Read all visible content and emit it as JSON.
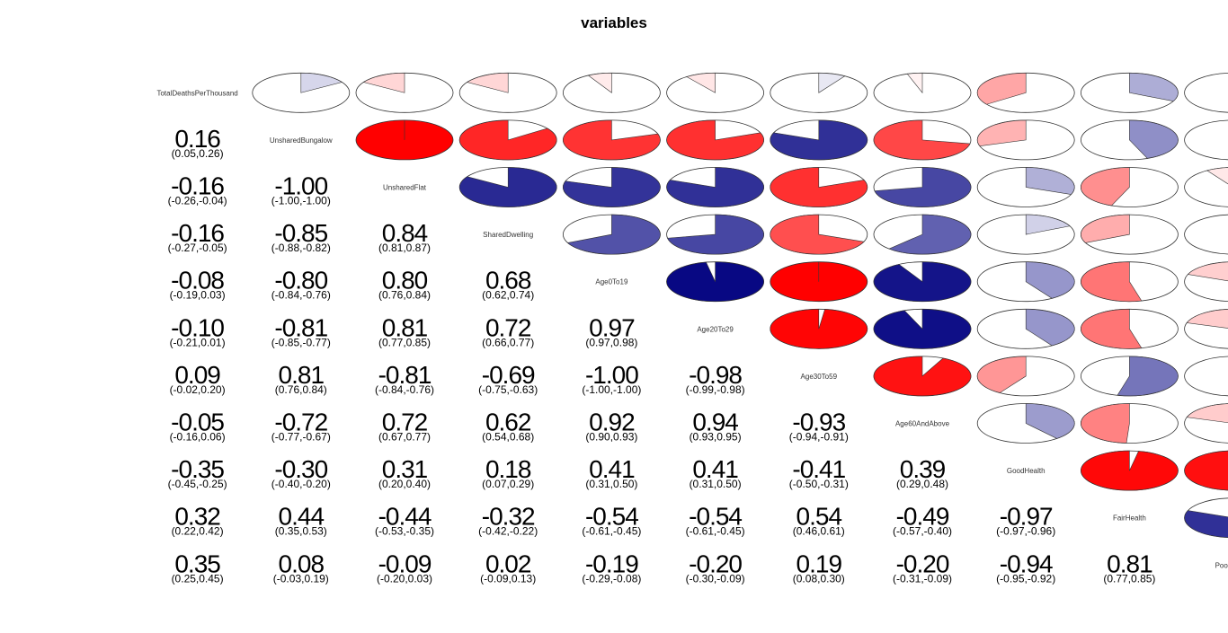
{
  "chart_data": {
    "type": "heatmap",
    "title": "variables",
    "variables": [
      "TotalDeathsPerThousand",
      "UnsharedBungalow",
      "UnsharedFlat",
      "SharedDwelling",
      "Age0To19",
      "Age20To29",
      "Age30To59",
      "Age60AndAbove",
      "GoodHealth",
      "FairHealth",
      "PoorHealth"
    ],
    "upper_panel": "pie",
    "lower_panel": "confidence interval",
    "diagonal": "variable names",
    "colors": {
      "positive": "#00007F",
      "negative": "#FF0000",
      "zero": "#FFFFFF"
    },
    "lower_cells": [
      {
        "i": 1,
        "j": 0,
        "r": "0.16",
        "ci": "(0.05,0.26)"
      },
      {
        "i": 2,
        "j": 0,
        "r": "-0.16",
        "ci": "(-0.26,-0.04)"
      },
      {
        "i": 2,
        "j": 1,
        "r": "-1.00",
        "ci": "(-1.00,-1.00)"
      },
      {
        "i": 3,
        "j": 0,
        "r": "-0.16",
        "ci": "(-0.27,-0.05)"
      },
      {
        "i": 3,
        "j": 1,
        "r": "-0.85",
        "ci": "(-0.88,-0.82)"
      },
      {
        "i": 3,
        "j": 2,
        "r": "0.84",
        "ci": "(0.81,0.87)"
      },
      {
        "i": 4,
        "j": 0,
        "r": "-0.08",
        "ci": "(-0.19,0.03)"
      },
      {
        "i": 4,
        "j": 1,
        "r": "-0.80",
        "ci": "(-0.84,-0.76)"
      },
      {
        "i": 4,
        "j": 2,
        "r": "0.80",
        "ci": "(0.76,0.84)"
      },
      {
        "i": 4,
        "j": 3,
        "r": "0.68",
        "ci": "(0.62,0.74)"
      },
      {
        "i": 5,
        "j": 0,
        "r": "-0.10",
        "ci": "(-0.21,0.01)"
      },
      {
        "i": 5,
        "j": 1,
        "r": "-0.81",
        "ci": "(-0.85,-0.77)"
      },
      {
        "i": 5,
        "j": 2,
        "r": "0.81",
        "ci": "(0.77,0.85)"
      },
      {
        "i": 5,
        "j": 3,
        "r": "0.72",
        "ci": "(0.66,0.77)"
      },
      {
        "i": 5,
        "j": 4,
        "r": "0.97",
        "ci": "(0.97,0.98)"
      },
      {
        "i": 6,
        "j": 0,
        "r": "0.09",
        "ci": "(-0.02,0.20)"
      },
      {
        "i": 6,
        "j": 1,
        "r": "0.81",
        "ci": "(0.76,0.84)"
      },
      {
        "i": 6,
        "j": 2,
        "r": "-0.81",
        "ci": "(-0.84,-0.76)"
      },
      {
        "i": 6,
        "j": 3,
        "r": "-0.69",
        "ci": "(-0.75,-0.63)"
      },
      {
        "i": 6,
        "j": 4,
        "r": "-1.00",
        "ci": "(-1.00,-1.00)"
      },
      {
        "i": 6,
        "j": 5,
        "r": "-0.98",
        "ci": "(-0.99,-0.98)"
      },
      {
        "i": 7,
        "j": 0,
        "r": "-0.05",
        "ci": "(-0.16,0.06)"
      },
      {
        "i": 7,
        "j": 1,
        "r": "-0.72",
        "ci": "(-0.77,-0.67)"
      },
      {
        "i": 7,
        "j": 2,
        "r": "0.72",
        "ci": "(0.67,0.77)"
      },
      {
        "i": 7,
        "j": 3,
        "r": "0.62",
        "ci": "(0.54,0.68)"
      },
      {
        "i": 7,
        "j": 4,
        "r": "0.92",
        "ci": "(0.90,0.93)"
      },
      {
        "i": 7,
        "j": 5,
        "r": "0.94",
        "ci": "(0.93,0.95)"
      },
      {
        "i": 7,
        "j": 6,
        "r": "-0.93",
        "ci": "(-0.94,-0.91)"
      },
      {
        "i": 8,
        "j": 0,
        "r": "-0.35",
        "ci": "(-0.45,-0.25)"
      },
      {
        "i": 8,
        "j": 1,
        "r": "-0.30",
        "ci": "(-0.40,-0.20)"
      },
      {
        "i": 8,
        "j": 2,
        "r": "0.31",
        "ci": "(0.20,0.40)"
      },
      {
        "i": 8,
        "j": 3,
        "r": "0.18",
        "ci": "(0.07,0.29)"
      },
      {
        "i": 8,
        "j": 4,
        "r": "0.41",
        "ci": "(0.31,0.50)"
      },
      {
        "i": 8,
        "j": 5,
        "r": "0.41",
        "ci": "(0.31,0.50)"
      },
      {
        "i": 8,
        "j": 6,
        "r": "-0.41",
        "ci": "(-0.50,-0.31)"
      },
      {
        "i": 8,
        "j": 7,
        "r": "0.39",
        "ci": "(0.29,0.48)"
      },
      {
        "i": 9,
        "j": 0,
        "r": "0.32",
        "ci": "(0.22,0.42)"
      },
      {
        "i": 9,
        "j": 1,
        "r": "0.44",
        "ci": "(0.35,0.53)"
      },
      {
        "i": 9,
        "j": 2,
        "r": "-0.44",
        "ci": "(-0.53,-0.35)"
      },
      {
        "i": 9,
        "j": 3,
        "r": "-0.32",
        "ci": "(-0.42,-0.22)"
      },
      {
        "i": 9,
        "j": 4,
        "r": "-0.54",
        "ci": "(-0.61,-0.45)"
      },
      {
        "i": 9,
        "j": 5,
        "r": "-0.54",
        "ci": "(-0.61,-0.45)"
      },
      {
        "i": 9,
        "j": 6,
        "r": "0.54",
        "ci": "(0.46,0.61)"
      },
      {
        "i": 9,
        "j": 7,
        "r": "-0.49",
        "ci": "(-0.57,-0.40)"
      },
      {
        "i": 9,
        "j": 8,
        "r": "-0.97",
        "ci": "(-0.97,-0.96)"
      },
      {
        "i": 10,
        "j": 0,
        "r": "0.35",
        "ci": "(0.25,0.45)"
      },
      {
        "i": 10,
        "j": 1,
        "r": "0.08",
        "ci": "(-0.03,0.19)"
      },
      {
        "i": 10,
        "j": 2,
        "r": "-0.09",
        "ci": "(-0.20,0.03)"
      },
      {
        "i": 10,
        "j": 3,
        "r": "0.02",
        "ci": "(-0.09,0.13)"
      },
      {
        "i": 10,
        "j": 4,
        "r": "-0.19",
        "ci": "(-0.29,-0.08)"
      },
      {
        "i": 10,
        "j": 5,
        "r": "-0.20",
        "ci": "(-0.30,-0.09)"
      },
      {
        "i": 10,
        "j": 6,
        "r": "0.19",
        "ci": "(0.08,0.30)"
      },
      {
        "i": 10,
        "j": 7,
        "r": "-0.20",
        "ci": "(-0.31,-0.09)"
      },
      {
        "i": 10,
        "j": 8,
        "r": "-0.94",
        "ci": "(-0.95,-0.92)"
      },
      {
        "i": 10,
        "j": 9,
        "r": "0.81",
        "ci": "(0.77,0.85)"
      }
    ]
  }
}
